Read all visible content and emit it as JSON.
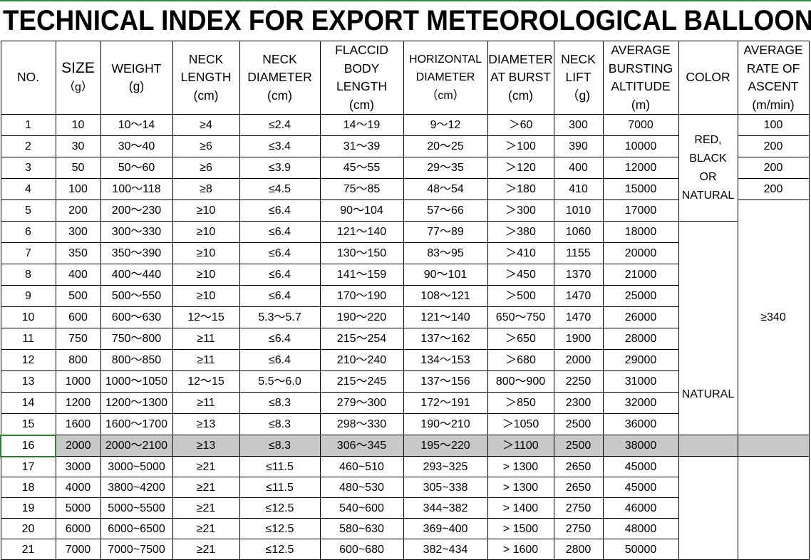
{
  "title": "TECHNICAL INDEX FOR EXPORT METEOROLOGICAL BALLOON",
  "headers": {
    "no": "NO.",
    "size": "SIZE",
    "size_unit": "（g）",
    "weight": "WEIGHT",
    "weight_unit": "(g)",
    "neck_length": "NECK LENGTH",
    "neck_length_unit": "(cm)",
    "neck_diameter": "NECK DIAMETER",
    "neck_diameter_unit": "(cm)",
    "flaccid": "FLACCID BODY LENGTH",
    "flaccid_unit": "(cm)",
    "horizontal": "HORIZONTAL DIAMETER",
    "horizontal_unit": "（cm）",
    "burst": "DIAMETER AT BURST",
    "burst_unit": "(cm)",
    "neck_lift": "NECK LIFT（g)",
    "altitude": "AVERAGE BURSTING ALTITUDE",
    "altitude_unit": "(m)",
    "color": "COLOR",
    "ascent": "AVERAGE RATE OF ASCENT",
    "ascent_unit": "(m/min)"
  },
  "rows": [
    {
      "no": "1",
      "size": "10",
      "weight": "10～14",
      "neck_length": "≥4",
      "neck_diameter": "≤2.4",
      "flaccid": "14～19",
      "horizontal": "9～12",
      "burst": "＞60",
      "neck_lift": "300",
      "altitude": "7000"
    },
    {
      "no": "2",
      "size": "30",
      "weight": "30～40",
      "neck_length": "≥6",
      "neck_diameter": "≤3.4",
      "flaccid": "31～39",
      "horizontal": "20～25",
      "burst": "＞100",
      "neck_lift": "390",
      "altitude": "10000"
    },
    {
      "no": "3",
      "size": "50",
      "weight": "50～60",
      "neck_length": "≥6",
      "neck_diameter": "≤3.9",
      "flaccid": "45～55",
      "horizontal": "29～35",
      "burst": "＞120",
      "neck_lift": "400",
      "altitude": "12000"
    },
    {
      "no": "4",
      "size": "100",
      "weight": "100～118",
      "neck_length": "≥8",
      "neck_diameter": "≤4.5",
      "flaccid": "75～85",
      "horizontal": "48～54",
      "burst": "＞180",
      "neck_lift": "410",
      "altitude": "15000"
    },
    {
      "no": "5",
      "size": "200",
      "weight": "200～230",
      "neck_length": "≥10",
      "neck_diameter": "≤6.4",
      "flaccid": "90～104",
      "horizontal": "57～66",
      "burst": "＞300",
      "neck_lift": "1010",
      "altitude": "17000"
    },
    {
      "no": "6",
      "size": "300",
      "weight": "300～330",
      "neck_length": "≥10",
      "neck_diameter": "≤6.4",
      "flaccid": "121～140",
      "horizontal": "77～89",
      "burst": "＞380",
      "neck_lift": "1060",
      "altitude": "18000"
    },
    {
      "no": "7",
      "size": "350",
      "weight": "350～390",
      "neck_length": "≥10",
      "neck_diameter": "≤6.4",
      "flaccid": "130～150",
      "horizontal": "83～95",
      "burst": "＞410",
      "neck_lift": "1155",
      "altitude": "20000"
    },
    {
      "no": "8",
      "size": "400",
      "weight": "400～440",
      "neck_length": "≥10",
      "neck_diameter": "≤6.4",
      "flaccid": "141～159",
      "horizontal": "90～101",
      "burst": "＞450",
      "neck_lift": "1370",
      "altitude": "21000"
    },
    {
      "no": "9",
      "size": "500",
      "weight": "500～550",
      "neck_length": "≥10",
      "neck_diameter": "≤6.4",
      "flaccid": "170～190",
      "horizontal": "108～121",
      "burst": "＞500",
      "neck_lift": "1470",
      "altitude": "25000"
    },
    {
      "no": "10",
      "size": "600",
      "weight": "600～630",
      "neck_length": "12～15",
      "neck_diameter": "5.3～5.7",
      "flaccid": "190～220",
      "horizontal": "121～140",
      "burst": "650～750",
      "neck_lift": "1470",
      "altitude": "26000"
    },
    {
      "no": "11",
      "size": "750",
      "weight": "750～800",
      "neck_length": "≥11",
      "neck_diameter": "≤6.4",
      "flaccid": "215～254",
      "horizontal": "137～162",
      "burst": "＞650",
      "neck_lift": "1900",
      "altitude": "28000"
    },
    {
      "no": "12",
      "size": "800",
      "weight": "800～850",
      "neck_length": "≥11",
      "neck_diameter": "≤6.4",
      "flaccid": "210～240",
      "horizontal": "134～153",
      "burst": "＞680",
      "neck_lift": "2000",
      "altitude": "29000"
    },
    {
      "no": "13",
      "size": "1000",
      "weight": "1000～1050",
      "neck_length": "12～15",
      "neck_diameter": "5.5～6.0",
      "flaccid": "215～245",
      "horizontal": "137～156",
      "burst": "800～900",
      "neck_lift": "2250",
      "altitude": "31000"
    },
    {
      "no": "14",
      "size": "1200",
      "weight": "1200～1300",
      "neck_length": "≥11",
      "neck_diameter": "≤8.3",
      "flaccid": "279～300",
      "horizontal": "172～191",
      "burst": "＞850",
      "neck_lift": "2300",
      "altitude": "32000"
    },
    {
      "no": "15",
      "size": "1600",
      "weight": "1600～1700",
      "neck_length": "≥13",
      "neck_diameter": "≤8.3",
      "flaccid": "298～330",
      "horizontal": "190～210",
      "burst": "＞1050",
      "neck_lift": "2500",
      "altitude": "36000"
    },
    {
      "no": "16",
      "size": "2000",
      "weight": "2000～2100",
      "neck_length": "≥13",
      "neck_diameter": "≤8.3",
      "flaccid": "306～345",
      "horizontal": "195～220",
      "burst": "＞1100",
      "neck_lift": "2500",
      "altitude": "38000"
    },
    {
      "no": "17",
      "size": "3000",
      "weight": "3000~5000",
      "neck_length": "≥21",
      "neck_diameter": "≤11.5",
      "flaccid": "460~510",
      "horizontal": "293~325",
      "burst": "> 1300",
      "neck_lift": "2650",
      "altitude": "45000"
    },
    {
      "no": "18",
      "size": "4000",
      "weight": "3800~4200",
      "neck_length": "≥21",
      "neck_diameter": "≤11.5",
      "flaccid": "480~530",
      "horizontal": "305~338",
      "burst": "> 1300",
      "neck_lift": "2650",
      "altitude": "45000"
    },
    {
      "no": "19",
      "size": "5000",
      "weight": "5000~5500",
      "neck_length": "≥21",
      "neck_diameter": "≤12.5",
      "flaccid": "540~600",
      "horizontal": "344~382",
      "burst": "> 1400",
      "neck_lift": "2750",
      "altitude": "46000"
    },
    {
      "no": "20",
      "size": "6000",
      "weight": "6000~6500",
      "neck_length": "≥21",
      "neck_diameter": "≤12.5",
      "flaccid": "580~630",
      "horizontal": "369~400",
      "burst": "> 1500",
      "neck_lift": "2750",
      "altitude": "48000"
    },
    {
      "no": "21",
      "size": "7000",
      "weight": "7000~7500",
      "neck_length": "≥21",
      "neck_diameter": "≤12.5",
      "flaccid": "600~680",
      "horizontal": "382~434",
      "burst": "> 1600",
      "neck_lift": "2800",
      "altitude": "50000"
    }
  ],
  "color_groups": {
    "first": "RED, BLACK OR NATURAL",
    "second": "NATURAL"
  },
  "ascent_values": {
    "r1": "100",
    "r2": "200",
    "r3": "200",
    "r4": "200",
    "big": "≥340"
  },
  "colors": {
    "highlight_row": "#c8c8c8",
    "selection_border": "#2e7d32",
    "top_rule": "#2f8f3f"
  }
}
